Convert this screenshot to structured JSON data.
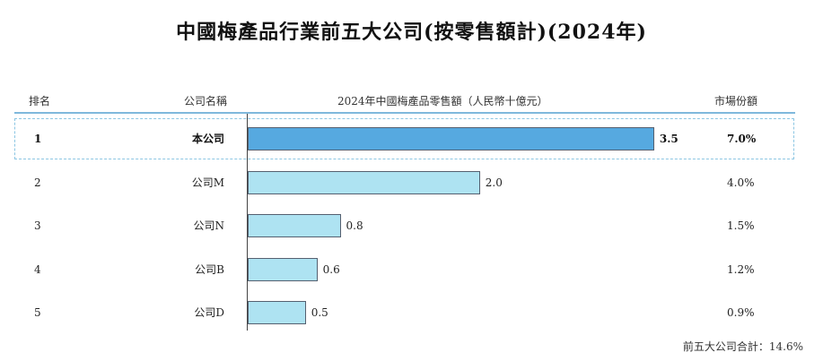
{
  "title": "中國梅產品行業前五大公司(按零售額計)(2024年)",
  "headers": {
    "rank": "排名",
    "company": "公司名稱",
    "metric": "2024年中國梅產品零售額（人民幣十億元）",
    "share": "市場份額"
  },
  "chart_data": {
    "type": "bar",
    "orientation": "horizontal",
    "title": "中國梅產品行業前五大公司(按零售額計)(2024年)",
    "xlabel": "2024年中國梅產品零售額（人民幣十億元）",
    "rows": [
      {
        "rank": "1",
        "company": "本公司",
        "value": 3.5,
        "value_label": "3.5",
        "share": "7.0%",
        "highlight": true
      },
      {
        "rank": "2",
        "company": "公司M",
        "value": 2.0,
        "value_label": "2.0",
        "share": "4.0%",
        "highlight": false
      },
      {
        "rank": "3",
        "company": "公司N",
        "value": 0.8,
        "value_label": "0.8",
        "share": "1.5%",
        "highlight": false
      },
      {
        "rank": "4",
        "company": "公司B",
        "value": 0.6,
        "value_label": "0.6",
        "share": "1.2%",
        "highlight": false
      },
      {
        "rank": "5",
        "company": "公司D",
        "value": 0.5,
        "value_label": "0.5",
        "share": "0.9%",
        "highlight": false
      }
    ],
    "colors": {
      "highlight_bar": "#56a9e0",
      "bar": "#aee3f2",
      "accent_line": "#7fb8dc"
    }
  },
  "footnote": "前五大公司合計：14.6%"
}
